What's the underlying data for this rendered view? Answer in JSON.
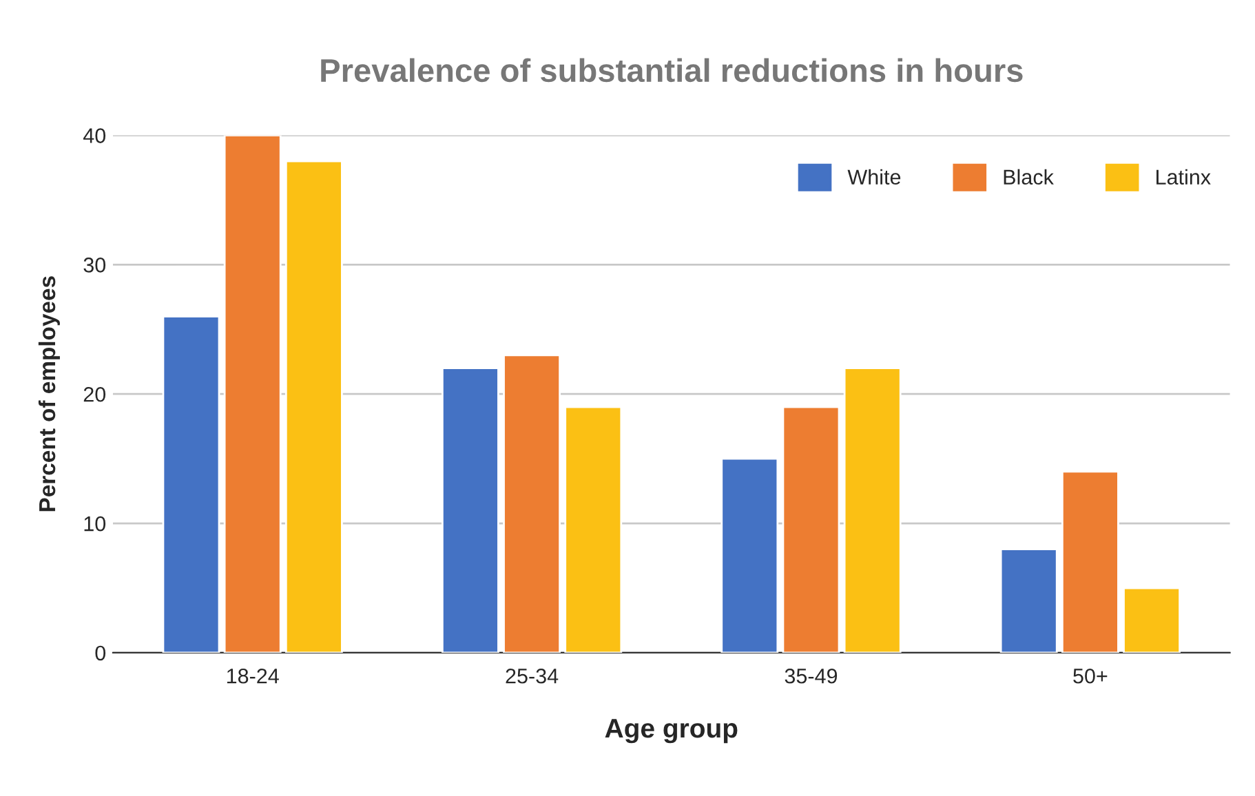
{
  "chart_data": {
    "type": "bar",
    "title": "Prevalence of substantial reductions in hours",
    "xlabel": "Age group",
    "ylabel": "Percent of employees",
    "categories": [
      "18-24",
      "25-34",
      "35-49",
      "50+"
    ],
    "series": [
      {
        "name": "White",
        "color": "#4472c4",
        "values": [
          26,
          22,
          15,
          8
        ]
      },
      {
        "name": "Black",
        "color": "#ed7d31",
        "values": [
          40,
          23,
          19,
          14
        ]
      },
      {
        "name": "Latinx",
        "color": "#fbc014",
        "values": [
          38,
          19,
          22,
          5
        ]
      }
    ],
    "ylim": [
      0,
      40
    ],
    "yticks": [
      0,
      10,
      20,
      30,
      40
    ],
    "grid": "y",
    "legend": "top right"
  }
}
